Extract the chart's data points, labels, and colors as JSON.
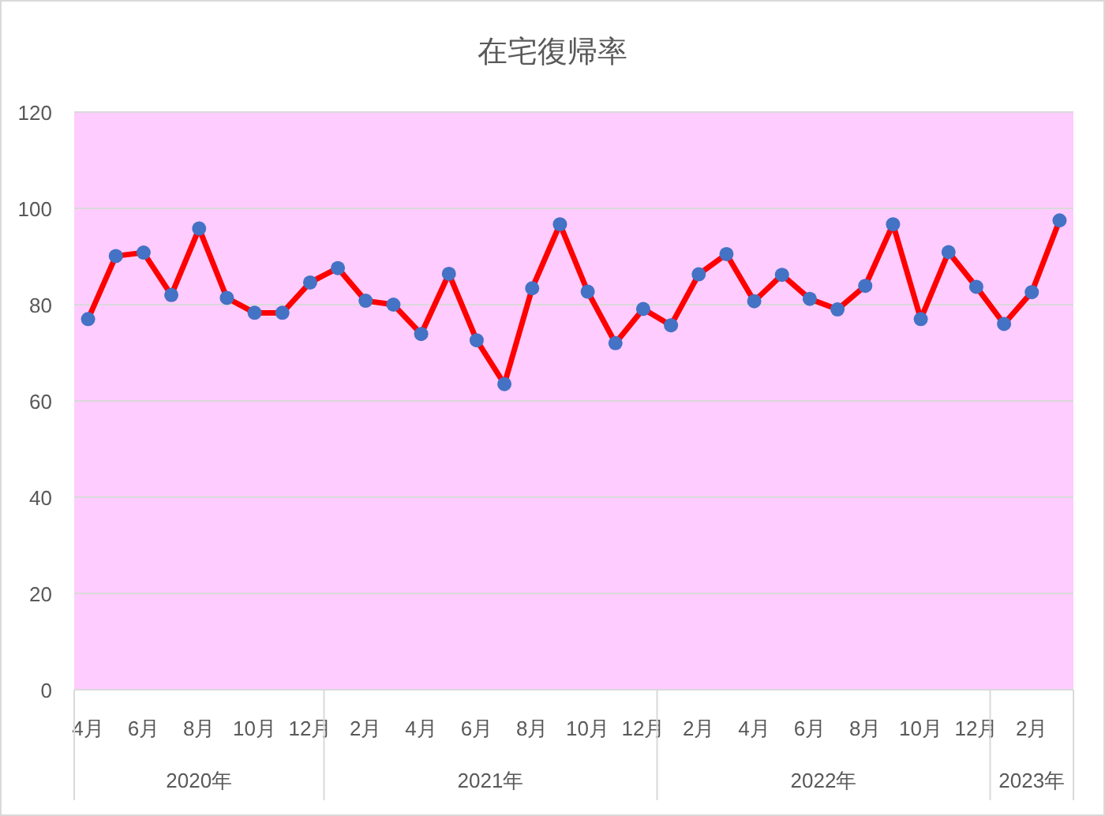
{
  "chart_data": {
    "type": "line",
    "title": "在宅復帰率",
    "categories": [
      "4月",
      null,
      "6月",
      null,
      "8月",
      null,
      "10月",
      null,
      "12月",
      null,
      "2月",
      null,
      "4月",
      null,
      "6月",
      null,
      "8月",
      null,
      "10月",
      null,
      "12月",
      null,
      "2月",
      null,
      "4月",
      null,
      "6月",
      null,
      "8月",
      null,
      "10月",
      null,
      "12月",
      null,
      "2月",
      null
    ],
    "series": [
      {
        "color": "#ff0000",
        "values": [
          77.0,
          90.1,
          90.8,
          82.0,
          95.8,
          81.4,
          78.3,
          78.3,
          84.6,
          87.6,
          80.8,
          80.0,
          73.9,
          86.4,
          72.6,
          63.5,
          83.4,
          96.7,
          82.7,
          72.0,
          79.1,
          75.7,
          86.3,
          90.5,
          80.7,
          86.2,
          81.2,
          79.0,
          83.9,
          96.7,
          77.0,
          90.9,
          83.7,
          76.0,
          82.6,
          97.5
        ]
      }
    ],
    "marker": "circle",
    "line_style": "solid",
    "grid": "y",
    "ylim": [
      0,
      120
    ],
    "yticks": [
      0,
      20,
      40,
      60,
      80,
      100,
      120
    ],
    "annotations": [
      "2020年",
      "2021年",
      "2022年",
      "2023年"
    ]
  }
}
